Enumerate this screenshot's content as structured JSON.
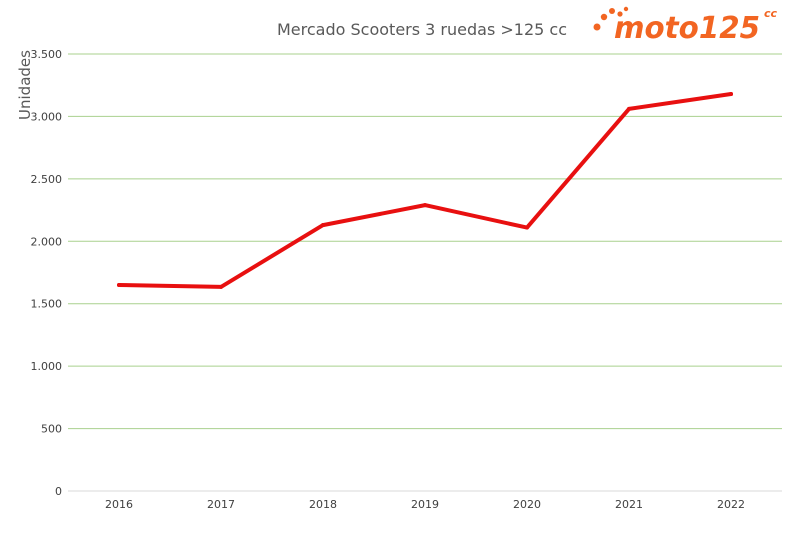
{
  "chart_data": {
    "type": "line",
    "title": "Mercado Scooters 3 ruedas >125 cc",
    "xlabel": "",
    "ylabel": "Unidades",
    "categories": [
      "2016",
      "2017",
      "2018",
      "2019",
      "2020",
      "2021",
      "2022"
    ],
    "series": [
      {
        "values": [
          1650,
          1635,
          2130,
          2290,
          2110,
          3060,
          3180
        ],
        "color": "#e81010"
      }
    ],
    "ylim": [
      0,
      3500
    ],
    "yticks": [
      {
        "value": 0,
        "label": "0"
      },
      {
        "value": 500,
        "label": "500"
      },
      {
        "value": 1000,
        "label": "1.000"
      },
      {
        "value": 1500,
        "label": "1.500"
      },
      {
        "value": 2000,
        "label": "2.000"
      },
      {
        "value": 2500,
        "label": "2.500"
      },
      {
        "value": 3000,
        "label": "3.000"
      },
      {
        "value": 3500,
        "label": "3.500"
      }
    ],
    "grid": true,
    "legend": "none",
    "gridline_color": "#a9d18e"
  },
  "logo": {
    "text_main": "moto125",
    "text_sup": "cc",
    "color": "#f26522",
    "icon": "orange-dots-icon"
  }
}
